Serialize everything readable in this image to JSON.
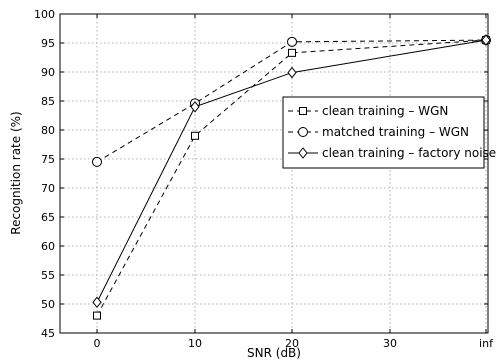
{
  "chart_data": {
    "type": "line",
    "xlabel": "SNR (dB)",
    "ylabel": "Recognition rate (%)",
    "x_ticks": [
      "0",
      "10",
      "20",
      "30",
      "inf"
    ],
    "x": [
      "0",
      "10",
      "20",
      "inf"
    ],
    "ylim": [
      45,
      100
    ],
    "y_ticks": [
      45,
      50,
      55,
      60,
      65,
      70,
      75,
      80,
      85,
      90,
      95,
      100
    ],
    "grid": true,
    "legend_position": "right, upper-middle",
    "series": [
      {
        "name": "clean training – WGN",
        "marker": "square",
        "line": "dashed",
        "values": [
          48,
          79,
          93.3,
          95.5
        ]
      },
      {
        "name": "matched training – WGN",
        "marker": "circle",
        "line": "dashed",
        "values": [
          74.5,
          84.6,
          95.2,
          95.5
        ]
      },
      {
        "name": "clean training – factory noise",
        "marker": "diamond",
        "line": "solid",
        "values": [
          50.3,
          84,
          89.9,
          95.5
        ]
      }
    ]
  }
}
